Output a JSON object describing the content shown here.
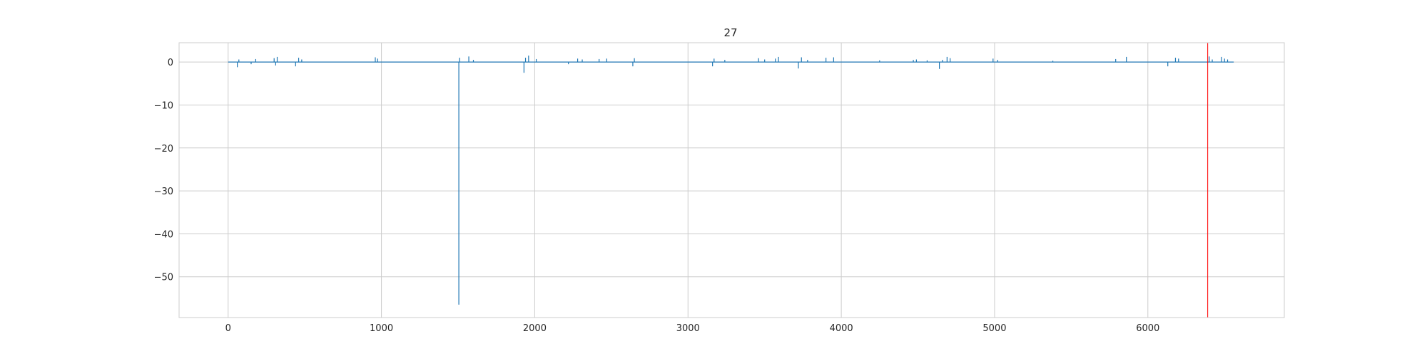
{
  "chart_data": {
    "type": "line",
    "title": "27",
    "xlabel": "",
    "ylabel": "",
    "xlim": [
      -320,
      6890
    ],
    "ylim": [
      -59.5,
      4.5
    ],
    "grid": true,
    "xticks": [
      0,
      1000,
      2000,
      3000,
      4000,
      5000,
      6000
    ],
    "yticks": [
      0,
      -10,
      -20,
      -30,
      -40,
      -50
    ],
    "ytick_labels": [
      "0",
      "−10",
      "−20",
      "−30",
      "−40",
      "−50"
    ],
    "series": [
      {
        "color": "#1f77b4",
        "x_range": [
          0,
          6560
        ],
        "baseline": 0,
        "spikes": [
          [
            60,
            -1.2
          ],
          [
            70,
            0.6
          ],
          [
            150,
            -0.5
          ],
          [
            180,
            0.7
          ],
          [
            300,
            0.9
          ],
          [
            310,
            -0.8
          ],
          [
            320,
            1.2
          ],
          [
            440,
            -1.0
          ],
          [
            460,
            1.0
          ],
          [
            480,
            0.6
          ],
          [
            960,
            1.1
          ],
          [
            975,
            0.8
          ],
          [
            1505,
            -56.5
          ],
          [
            1510,
            1.0
          ],
          [
            1570,
            1.3
          ],
          [
            1600,
            0.5
          ],
          [
            1930,
            -2.5
          ],
          [
            1940,
            1.0
          ],
          [
            1960,
            1.5
          ],
          [
            2010,
            0.7
          ],
          [
            2220,
            -0.5
          ],
          [
            2280,
            0.8
          ],
          [
            2310,
            0.6
          ],
          [
            2420,
            0.7
          ],
          [
            2470,
            0.8
          ],
          [
            2640,
            -1.0
          ],
          [
            2650,
            0.9
          ],
          [
            3160,
            -1.0
          ],
          [
            3170,
            0.8
          ],
          [
            3240,
            0.5
          ],
          [
            3460,
            0.9
          ],
          [
            3500,
            0.6
          ],
          [
            3570,
            0.8
          ],
          [
            3590,
            1.2
          ],
          [
            3720,
            -1.5
          ],
          [
            3740,
            1.1
          ],
          [
            3780,
            0.5
          ],
          [
            3900,
            1.0
          ],
          [
            3950,
            1.1
          ],
          [
            4250,
            0.4
          ],
          [
            4470,
            0.5
          ],
          [
            4490,
            0.6
          ],
          [
            4560,
            0.4
          ],
          [
            4640,
            -1.6
          ],
          [
            4660,
            0.5
          ],
          [
            4690,
            1.2
          ],
          [
            4710,
            0.9
          ],
          [
            4990,
            0.8
          ],
          [
            5020,
            0.5
          ],
          [
            5380,
            0.3
          ],
          [
            5790,
            0.7
          ],
          [
            5860,
            1.2
          ],
          [
            6130,
            -1.0
          ],
          [
            6180,
            1.0
          ],
          [
            6200,
            0.8
          ],
          [
            6400,
            1.3
          ],
          [
            6420,
            0.6
          ],
          [
            6480,
            1.2
          ],
          [
            6500,
            0.8
          ],
          [
            6520,
            0.6
          ]
        ]
      }
    ],
    "vlines": [
      {
        "x": 6390,
        "color": "#ff0000"
      }
    ]
  }
}
